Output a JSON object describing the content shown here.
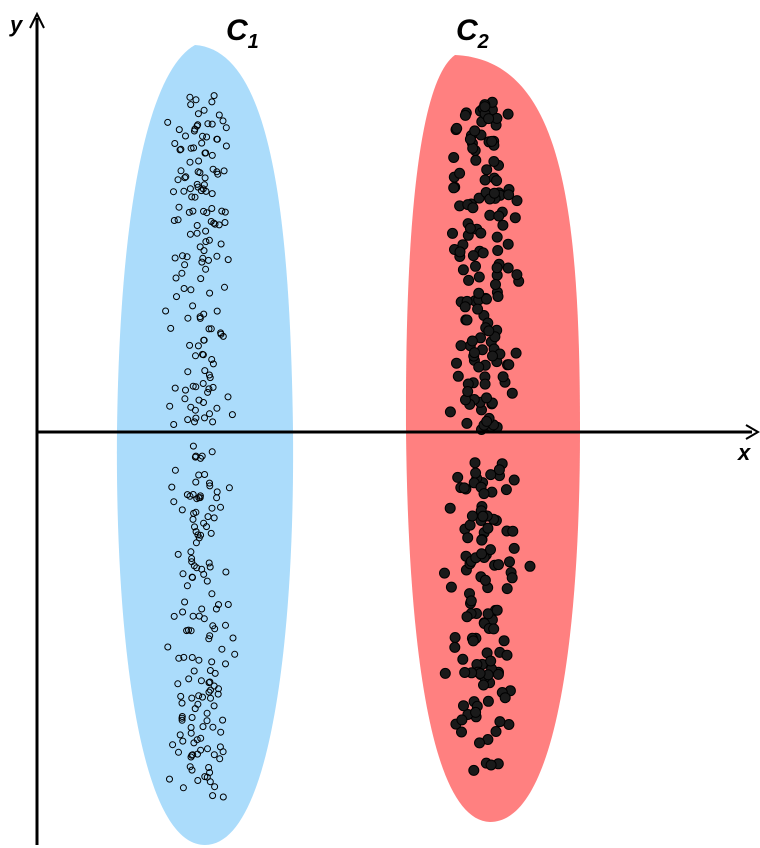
{
  "axes": {
    "x_label": "x",
    "y_label": "y"
  },
  "clusters": [
    {
      "id": "c1",
      "label": "C",
      "subscript": "1",
      "fill": "#abdcfb",
      "marker": "hollow",
      "marker_color": "#000000"
    },
    {
      "id": "c2",
      "label": "C",
      "subscript": "2",
      "fill": "#ff8080",
      "marker": "filled",
      "marker_color": "#1a1a1a"
    }
  ]
}
